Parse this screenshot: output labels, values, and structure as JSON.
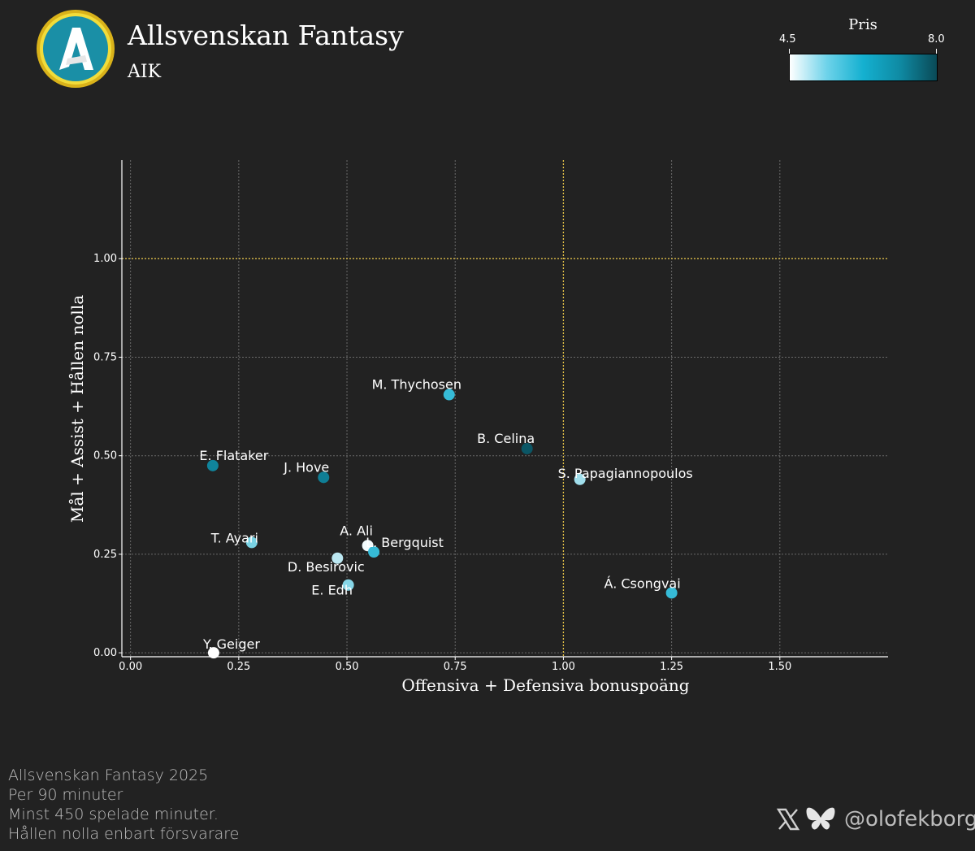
{
  "header": {
    "title": "Allsvenskan Fantasy",
    "team": "AIK",
    "logo_letter": "A"
  },
  "colorbar": {
    "title": "Pris",
    "min_label": "4.5",
    "max_label": "8.0",
    "colors": [
      "#ffffff",
      "#14b0d0",
      "#0a4a57"
    ]
  },
  "chart_data": {
    "type": "scatter",
    "title": "",
    "xlabel": "Offensiva + Defensiva bonuspoäng",
    "ylabel": "Mål + Assist + Hållen nolla",
    "xlim": [
      -0.02,
      1.75
    ],
    "ylim": [
      -0.01,
      1.25
    ],
    "x_ticks": [
      0.0,
      0.25,
      0.5,
      0.75,
      1.0,
      1.25,
      1.5
    ],
    "x_tick_labels": [
      "0.00",
      "0.25",
      "0.50",
      "0.75",
      "1.00",
      "1.25",
      "1.50"
    ],
    "y_ticks": [
      0.0,
      0.25,
      0.5,
      0.75,
      1.0
    ],
    "y_tick_labels": [
      "0.00",
      "0.25",
      "0.50",
      "0.75",
      "1.00"
    ],
    "grid": true,
    "reference_lines": {
      "x": 1.0,
      "y": 1.0,
      "color": "#e8c547"
    },
    "color_scale": {
      "variable": "Pris",
      "min": 4.5,
      "max": 8.0
    },
    "points": [
      {
        "name": "M. Thychosen",
        "x": 0.736,
        "y": 0.655,
        "price": 6.0
      },
      {
        "name": "B. Celina",
        "x": 0.916,
        "y": 0.518,
        "price": 7.8
      },
      {
        "name": "S. Papagiannopoulos",
        "x": 1.038,
        "y": 0.44,
        "price": 5.2
      },
      {
        "name": "E. Flataker",
        "x": 0.19,
        "y": 0.475,
        "price": 7.0
      },
      {
        "name": "J. Hove",
        "x": 0.446,
        "y": 0.445,
        "price": 7.1
      },
      {
        "name": "T. Ayari",
        "x": 0.28,
        "y": 0.28,
        "price": 5.5
      },
      {
        "name": "A. Ali",
        "x": 0.548,
        "y": 0.272,
        "price": 4.6
      },
      {
        "name": "L. Bergquist",
        "x": 0.562,
        "y": 0.256,
        "price": 6.0
      },
      {
        "name": "D. Besirovic",
        "x": 0.478,
        "y": 0.24,
        "price": 5.0
      },
      {
        "name": "E. Edh",
        "x": 0.503,
        "y": 0.172,
        "price": 5.4
      },
      {
        "name": "Á. Csongvai",
        "x": 1.25,
        "y": 0.152,
        "price": 6.0
      },
      {
        "name": "Y. Geiger",
        "x": 0.192,
        "y": 0.0,
        "price": 4.5
      }
    ]
  },
  "footer": {
    "lines": [
      "Allsvenskan Fantasy 2025",
      "Per 90 minuter",
      "Minst 450 spelade minuter.",
      "Hållen nolla enbart försvarare"
    ],
    "handle": "@olofekborg",
    "icons": [
      "x-logo-icon",
      "bluesky-butterfly-icon"
    ]
  }
}
